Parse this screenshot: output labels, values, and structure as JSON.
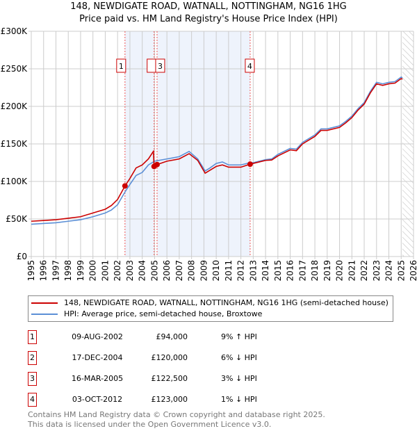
{
  "title": "148, NEWDIGATE ROAD, WATNALL, NOTTINGHAM, NG16 1HG",
  "subtitle": "Price paid vs. HM Land Registry's House Price Index (HPI)",
  "chart_data": {
    "type": "line",
    "xlim": [
      1995,
      2026
    ],
    "ylim": [
      0,
      300000
    ],
    "yticks": [
      {
        "v": 0,
        "label": "£0"
      },
      {
        "v": 50000,
        "label": "£50K"
      },
      {
        "v": 100000,
        "label": "£100K"
      },
      {
        "v": 150000,
        "label": "£150K"
      },
      {
        "v": 200000,
        "label": "£200K"
      },
      {
        "v": 250000,
        "label": "£250K"
      },
      {
        "v": 300000,
        "label": "£300K"
      }
    ],
    "xticks": [
      "1995",
      "1996",
      "1997",
      "1998",
      "1999",
      "2000",
      "2001",
      "2002",
      "2003",
      "2004",
      "2005",
      "2006",
      "2007",
      "2008",
      "2009",
      "2010",
      "2011",
      "2012",
      "2013",
      "2014",
      "2015",
      "2016",
      "2017",
      "2018",
      "2019",
      "2020",
      "2021",
      "2022",
      "2023",
      "2024",
      "2025",
      "2026"
    ],
    "forecast_start": 2025.1,
    "shaded_ranges": [
      [
        2002.6,
        2004.96
      ],
      [
        2005.2,
        2012.75
      ]
    ],
    "series": [
      {
        "name": "148, NEWDIGATE ROAD, WATNALL, NOTTINGHAM, NG16 1HG (semi-detached house)",
        "color": "#cc0000",
        "x": [
          1995,
          1996,
          1997,
          1998,
          1999,
          2000,
          2001,
          2001.5,
          2002,
          2002.6,
          2003,
          2003.5,
          2004,
          2004.5,
          2004.9,
          2004.96,
          2005.2,
          2006,
          2007,
          2007.8,
          2008.5,
          2009.1,
          2009.5,
          2010,
          2010.5,
          2011,
          2012,
          2012.75,
          2013,
          2014,
          2014.5,
          2015,
          2016,
          2016.5,
          2017,
          2018,
          2018.5,
          2019,
          2020,
          2020.5,
          2021,
          2021.5,
          2022,
          2022.5,
          2023,
          2023.5,
          2024,
          2024.5,
          2025,
          2025.1
        ],
        "y": [
          47000,
          48000,
          49000,
          51000,
          53000,
          58000,
          63000,
          68000,
          76000,
          94000,
          104000,
          118000,
          122000,
          130000,
          140000,
          120000,
          122500,
          127000,
          130000,
          137000,
          128000,
          111000,
          115000,
          120000,
          122000,
          119000,
          119000,
          123000,
          124000,
          128000,
          128500,
          134000,
          142000,
          141000,
          150000,
          160000,
          168000,
          168000,
          172000,
          178000,
          185000,
          195000,
          203000,
          218000,
          230000,
          228000,
          230000,
          231000,
          237000,
          236000
        ]
      },
      {
        "name": "HPI: Average price, semi-detached house, Broxtowe",
        "color": "#5b8fd6",
        "x": [
          1995,
          1996,
          1997,
          1998,
          1999,
          2000,
          2001,
          2001.5,
          2002,
          2002.6,
          2003,
          2003.5,
          2004,
          2004.5,
          2005,
          2006,
          2007,
          2007.8,
          2008.5,
          2009.1,
          2009.5,
          2010,
          2010.5,
          2011,
          2012,
          2012.75,
          2013,
          2014,
          2014.5,
          2015,
          2016,
          2016.5,
          2017,
          2018,
          2018.5,
          2019,
          2020,
          2020.5,
          2021,
          2021.5,
          2022,
          2022.5,
          2023,
          2023.5,
          2024,
          2024.5,
          2025,
          2025.1
        ],
        "y": [
          43000,
          44000,
          45000,
          47000,
          49000,
          53000,
          58000,
          62000,
          69000,
          86000,
          96000,
          108000,
          112000,
          122000,
          127000,
          130000,
          133000,
          140000,
          130000,
          114000,
          118000,
          124000,
          126000,
          122000,
          122000,
          125000,
          125000,
          129000,
          130000,
          136000,
          144000,
          143000,
          152000,
          162000,
          170000,
          170000,
          174000,
          180000,
          187000,
          197000,
          205000,
          220000,
          232000,
          230000,
          232000,
          233000,
          239000,
          238000
        ]
      }
    ],
    "sales": [
      {
        "id": "1",
        "x": 2002.6,
        "y": 94000
      },
      {
        "id": "2",
        "x": 2004.96,
        "y": 120000
      },
      {
        "id": "3",
        "x": 2005.2,
        "y": 122500
      },
      {
        "id": "4",
        "x": 2012.75,
        "y": 123000
      }
    ]
  },
  "legend": [
    {
      "label": "148, NEWDIGATE ROAD, WATNALL, NOTTINGHAM, NG16 1HG (semi-detached house)",
      "color": "#cc0000"
    },
    {
      "label": "HPI: Average price, semi-detached house, Broxtowe",
      "color": "#5b8fd6"
    }
  ],
  "table": [
    {
      "num": "1",
      "date": "09-AUG-2002",
      "price": "£94,000",
      "pct": "9% ↑ HPI"
    },
    {
      "num": "2",
      "date": "17-DEC-2004",
      "price": "£120,000",
      "pct": "6% ↓ HPI"
    },
    {
      "num": "3",
      "date": "16-MAR-2005",
      "price": "£122,500",
      "pct": "3% ↓ HPI"
    },
    {
      "num": "4",
      "date": "03-OCT-2012",
      "price": "£123,000",
      "pct": "1% ↓ HPI"
    }
  ],
  "footer": [
    "Contains HM Land Registry data © Crown copyright and database right 2025.",
    "This data is licensed under the Open Government Licence v3.0."
  ]
}
